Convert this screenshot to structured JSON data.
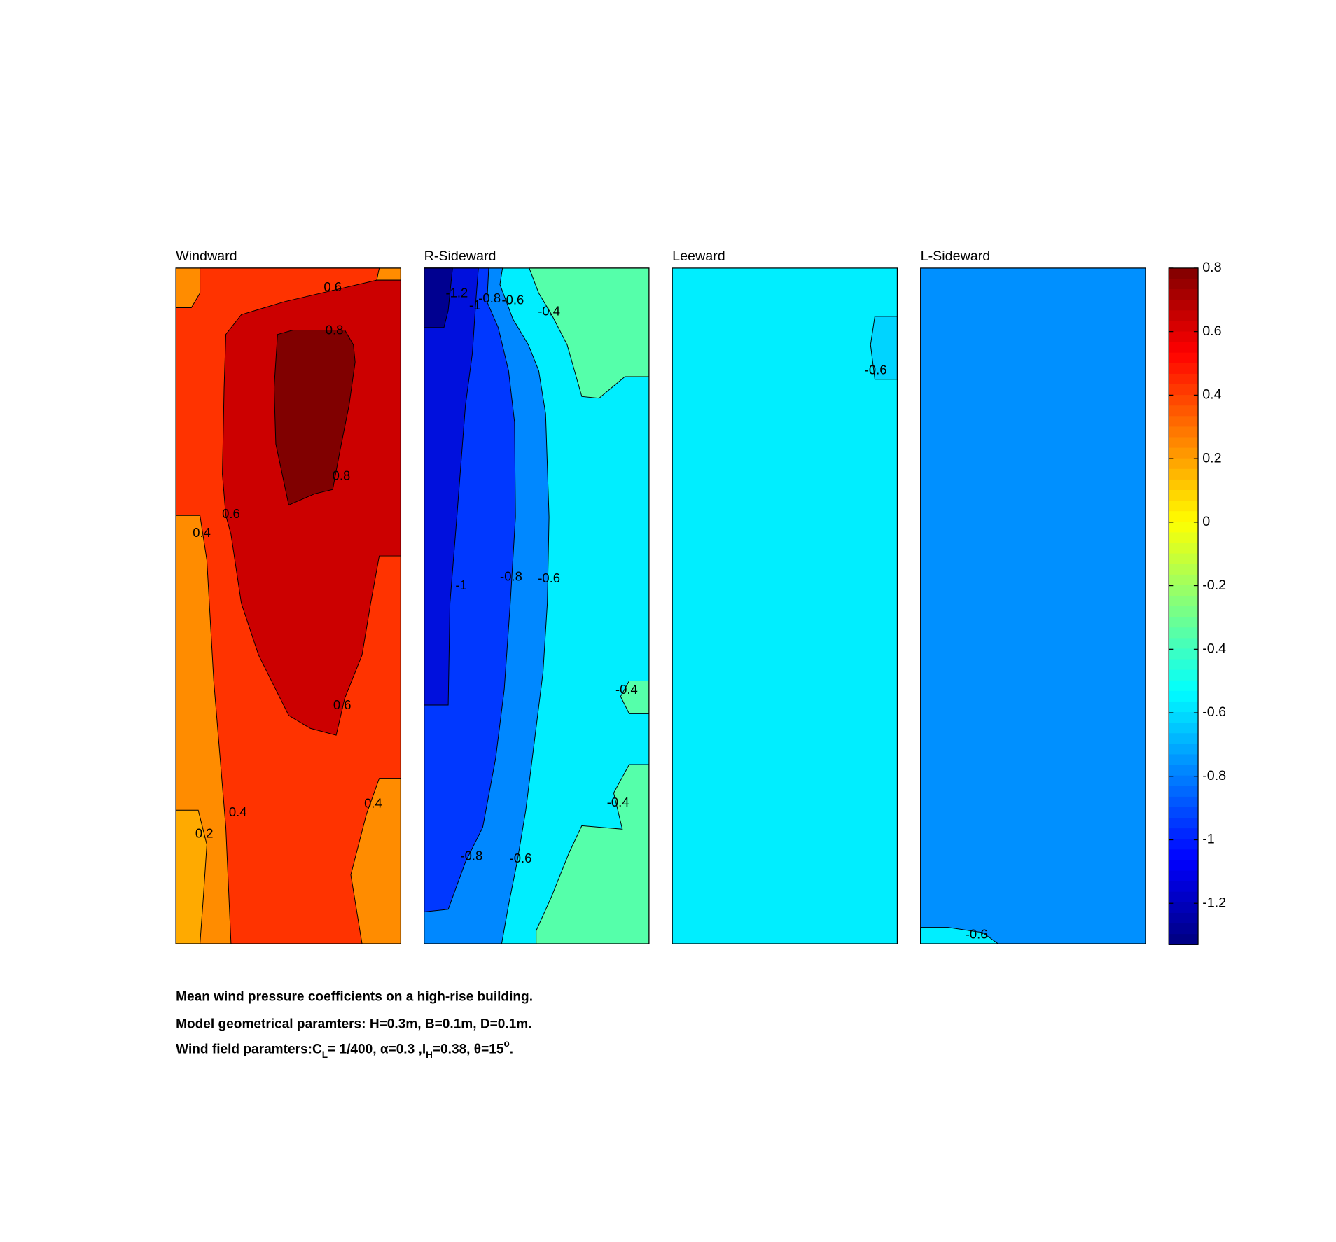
{
  "chart_data": {
    "type": "contour",
    "panels": [
      {
        "title": "Windward",
        "labels": [
          0.6,
          0.8,
          0.8,
          0.6,
          0.4,
          0.6,
          0.4,
          0.4,
          0.2
        ]
      },
      {
        "title": "R-Sideward",
        "labels": [
          -1.2,
          -1,
          -0.8,
          -0.6,
          -0.4,
          -1,
          -0.8,
          -0.6,
          -0.4,
          -0.4,
          -0.8,
          -0.6
        ]
      },
      {
        "title": "Leeward",
        "labels": [
          -0.6
        ]
      },
      {
        "title": "L-Sideward",
        "labels": [
          -0.6
        ]
      }
    ],
    "colorbar": {
      "colormap": "jet",
      "lim": [
        -1.33,
        0.8
      ],
      "ticks": [
        0.8,
        0.6,
        0.4,
        0.2,
        0,
        -0.2,
        -0.4,
        -0.6,
        -0.8,
        -1,
        -1.2
      ]
    }
  },
  "caption": [
    "Mean wind pressure coefficients on a high-rise building.",
    "Model geometrical paramters: H=0.3m, B=0.1m, D=0.1m.",
    [
      "Wind field paramters:C",
      "L",
      "= 1/400, α=0.3 ,I",
      "H",
      "=0.38, θ=15",
      "o",
      "."
    ]
  ]
}
